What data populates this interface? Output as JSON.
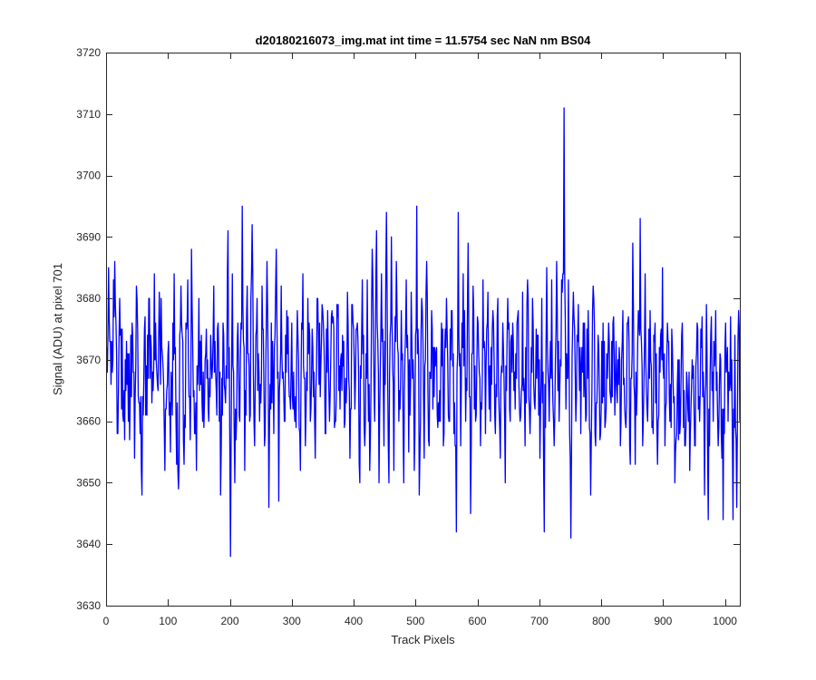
{
  "chart_data": {
    "type": "line",
    "title": "d20180216073_img.mat int time = 11.5754 sec  NaN nm BS04",
    "xlabel": "Track Pixels",
    "ylabel": "Signal (ADU) at pixel 701",
    "xlim": [
      0,
      1024
    ],
    "ylim": [
      3630,
      3720
    ],
    "xticks": [
      0,
      100,
      200,
      300,
      400,
      500,
      600,
      700,
      800,
      900,
      1000
    ],
    "yticks": [
      3630,
      3640,
      3650,
      3660,
      3670,
      3680,
      3690,
      3700,
      3710,
      3720
    ],
    "grid": false,
    "line_color": "#0000ff",
    "series": [
      {
        "x_start": 1,
        "x_step": 1,
        "summary": {
          "count": 1024,
          "mean": 3668,
          "min": 3638,
          "min_at": 201,
          "max": 3711,
          "max_at": 740
        },
        "anchor_points": [
          [
            1,
            3672
          ],
          [
            4,
            3685
          ],
          [
            8,
            3666
          ],
          [
            12,
            3683
          ],
          [
            14,
            3686
          ],
          [
            18,
            3658
          ],
          [
            22,
            3680
          ],
          [
            30,
            3657
          ],
          [
            35,
            3671
          ],
          [
            38,
            3657
          ],
          [
            42,
            3676
          ],
          [
            46,
            3654
          ],
          [
            49,
            3682
          ],
          [
            53,
            3663
          ],
          [
            58,
            3648
          ],
          [
            62,
            3675
          ],
          [
            66,
            3661
          ],
          [
            70,
            3680
          ],
          [
            74,
            3663
          ],
          [
            78,
            3684
          ],
          [
            82,
            3668
          ],
          [
            86,
            3681
          ],
          [
            90,
            3672
          ],
          [
            95,
            3652
          ],
          [
            100,
            3671
          ],
          [
            104,
            3655
          ],
          [
            110,
            3684
          ],
          [
            113,
            3660
          ],
          [
            117,
            3649
          ],
          [
            121,
            3682
          ],
          [
            126,
            3653
          ],
          [
            132,
            3683
          ],
          [
            136,
            3657
          ],
          [
            138,
            3688
          ],
          [
            142,
            3665
          ],
          [
            146,
            3652
          ],
          [
            150,
            3680
          ],
          [
            153,
            3666
          ],
          [
            158,
            3659
          ],
          [
            162,
            3675
          ],
          [
            166,
            3660
          ],
          [
            170,
            3670
          ],
          [
            174,
            3682
          ],
          [
            178,
            3665
          ],
          [
            182,
            3671
          ],
          [
            185,
            3648
          ],
          [
            189,
            3676
          ],
          [
            193,
            3663
          ],
          [
            197,
            3691
          ],
          [
            201,
            3638
          ],
          [
            204,
            3684
          ],
          [
            208,
            3650
          ],
          [
            212,
            3673
          ],
          [
            216,
            3660
          ],
          [
            220,
            3695
          ],
          [
            224,
            3652
          ],
          [
            228,
            3682
          ],
          [
            232,
            3660
          ],
          [
            236,
            3692
          ],
          [
            240,
            3656
          ],
          [
            244,
            3680
          ],
          [
            248,
            3660
          ],
          [
            252,
            3682
          ],
          [
            256,
            3656
          ],
          [
            260,
            3686
          ],
          [
            263,
            3646
          ],
          [
            267,
            3676
          ],
          [
            271,
            3658
          ],
          [
            275,
            3688
          ],
          [
            279,
            3647
          ],
          [
            283,
            3682
          ],
          [
            288,
            3660
          ],
          [
            292,
            3678
          ],
          [
            296,
            3664
          ],
          [
            300,
            3676
          ],
          [
            305,
            3660
          ],
          [
            310,
            3674
          ],
          [
            314,
            3652
          ],
          [
            318,
            3684
          ],
          [
            322,
            3656
          ],
          [
            326,
            3680
          ],
          [
            330,
            3660
          ],
          [
            334,
            3672
          ],
          [
            338,
            3654
          ],
          [
            342,
            3680
          ],
          [
            346,
            3664
          ],
          [
            350,
            3678
          ],
          [
            354,
            3658
          ],
          [
            358,
            3678
          ],
          [
            362,
            3664
          ],
          [
            366,
            3676
          ],
          [
            370,
            3660
          ],
          [
            374,
            3677
          ],
          [
            378,
            3662
          ],
          [
            382,
            3674
          ],
          [
            386,
            3660
          ],
          [
            390,
            3681
          ],
          [
            394,
            3654
          ],
          [
            398,
            3679
          ],
          [
            402,
            3662
          ],
          [
            406,
            3676
          ],
          [
            410,
            3650
          ],
          [
            414,
            3683
          ],
          [
            418,
            3656
          ],
          [
            422,
            3683
          ],
          [
            426,
            3652
          ],
          [
            430,
            3688
          ],
          [
            434,
            3660
          ],
          [
            437,
            3691
          ],
          [
            441,
            3650
          ],
          [
            445,
            3684
          ],
          [
            449,
            3656
          ],
          [
            453,
            3694
          ],
          [
            457,
            3650
          ],
          [
            461,
            3690
          ],
          [
            465,
            3652
          ],
          [
            469,
            3686
          ],
          [
            473,
            3660
          ],
          [
            477,
            3678
          ],
          [
            481,
            3650
          ],
          [
            485,
            3683
          ],
          [
            489,
            3655
          ],
          [
            493,
            3681
          ],
          [
            498,
            3652
          ],
          [
            502,
            3695
          ],
          [
            506,
            3648
          ],
          [
            510,
            3680
          ],
          [
            514,
            3654
          ],
          [
            518,
            3686
          ],
          [
            522,
            3656
          ],
          [
            526,
            3678
          ],
          [
            530,
            3664
          ],
          [
            534,
            3672
          ],
          [
            538,
            3660
          ],
          [
            542,
            3676
          ],
          [
            546,
            3658
          ],
          [
            550,
            3680
          ],
          [
            554,
            3660
          ],
          [
            558,
            3678
          ],
          [
            562,
            3658
          ],
          [
            566,
            3642
          ],
          [
            569,
            3694
          ],
          [
            573,
            3656
          ],
          [
            577,
            3684
          ],
          [
            581,
            3660
          ],
          [
            585,
            3689
          ],
          [
            589,
            3645
          ],
          [
            593,
            3682
          ],
          [
            597,
            3660
          ],
          [
            601,
            3676
          ],
          [
            605,
            3656
          ],
          [
            609,
            3683
          ],
          [
            613,
            3658
          ],
          [
            617,
            3681
          ],
          [
            621,
            3660
          ],
          [
            625,
            3678
          ],
          [
            629,
            3658
          ],
          [
            633,
            3680
          ],
          [
            637,
            3654
          ],
          [
            641,
            3676
          ],
          [
            645,
            3650
          ],
          [
            649,
            3680
          ],
          [
            653,
            3660
          ],
          [
            657,
            3676
          ],
          [
            661,
            3662
          ],
          [
            665,
            3677
          ],
          [
            669,
            3660
          ],
          [
            673,
            3681
          ],
          [
            677,
            3656
          ],
          [
            681,
            3683
          ],
          [
            685,
            3658
          ],
          [
            689,
            3680
          ],
          [
            693,
            3662
          ],
          [
            697,
            3674
          ],
          [
            701,
            3654
          ],
          [
            704,
            3680
          ],
          [
            708,
            3642
          ],
          [
            712,
            3685
          ],
          [
            716,
            3660
          ],
          [
            720,
            3683
          ],
          [
            724,
            3656
          ],
          [
            728,
            3686
          ],
          [
            732,
            3660
          ],
          [
            736,
            3683
          ],
          [
            740,
            3711
          ],
          [
            743,
            3662
          ],
          [
            747,
            3683
          ],
          [
            751,
            3641
          ],
          [
            755,
            3681
          ],
          [
            759,
            3660
          ],
          [
            763,
            3679
          ],
          [
            767,
            3658
          ],
          [
            771,
            3676
          ],
          [
            775,
            3660
          ],
          [
            779,
            3678
          ],
          [
            783,
            3648
          ],
          [
            787,
            3682
          ],
          [
            791,
            3656
          ],
          [
            795,
            3674
          ],
          [
            799,
            3658
          ],
          [
            803,
            3676
          ],
          [
            807,
            3660
          ],
          [
            811,
            3671
          ],
          [
            815,
            3664
          ],
          [
            819,
            3676
          ],
          [
            823,
            3666
          ],
          [
            827,
            3670
          ],
          [
            831,
            3656
          ],
          [
            835,
            3678
          ],
          [
            839,
            3660
          ],
          [
            843,
            3676
          ],
          [
            847,
            3653
          ],
          [
            851,
            3689
          ],
          [
            855,
            3653
          ],
          [
            859,
            3673
          ],
          [
            863,
            3693
          ],
          [
            867,
            3656
          ],
          [
            871,
            3684
          ],
          [
            875,
            3660
          ],
          [
            879,
            3678
          ],
          [
            883,
            3660
          ],
          [
            887,
            3676
          ],
          [
            891,
            3653
          ],
          [
            895,
            3668
          ],
          [
            899,
            3685
          ],
          [
            903,
            3656
          ],
          [
            907,
            3676
          ],
          [
            911,
            3660
          ],
          [
            915,
            3672
          ],
          [
            919,
            3650
          ],
          [
            923,
            3666
          ],
          [
            927,
            3658
          ],
          [
            931,
            3676
          ],
          [
            935,
            3656
          ],
          [
            939,
            3666
          ],
          [
            943,
            3652
          ],
          [
            947,
            3670
          ],
          [
            951,
            3656
          ],
          [
            955,
            3676
          ],
          [
            959,
            3660
          ],
          [
            963,
            3677
          ],
          [
            967,
            3648
          ],
          [
            970,
            3679
          ],
          [
            973,
            3644
          ],
          [
            977,
            3674
          ],
          [
            981,
            3660
          ],
          [
            985,
            3678
          ],
          [
            989,
            3656
          ],
          [
            993,
            3670
          ],
          [
            997,
            3644
          ],
          [
            1001,
            3676
          ],
          [
            1005,
            3660
          ],
          [
            1009,
            3677
          ],
          [
            1013,
            3644
          ],
          [
            1016,
            3674
          ],
          [
            1019,
            3646
          ],
          [
            1022,
            3678
          ],
          [
            1024,
            3660
          ]
        ]
      }
    ]
  }
}
